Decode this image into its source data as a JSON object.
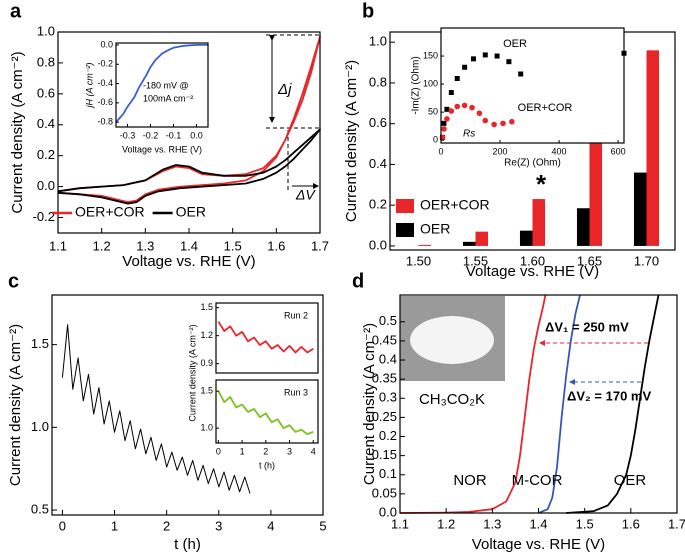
{
  "chart_data": [
    {
      "type": "line",
      "panel_label": "a",
      "xlabel": "Voltage vs. RHE (V)",
      "ylabel": "Current density (A cm⁻²)",
      "legend": "lower left",
      "xlim": [
        1.1,
        1.7
      ],
      "xticks": [
        1.1,
        1.2,
        1.3,
        1.4,
        1.5,
        1.6,
        1.7
      ],
      "ylim": [
        -0.3,
        1.0
      ],
      "yticks": [
        -0.2,
        {
          "value": 0,
          "label": "0.0"
        },
        0.2,
        0.4,
        0.6,
        0.8,
        {
          "value": 1,
          "label": "1.0"
        }
      ],
      "annotations": [
        "Δj",
        "ΔV"
      ],
      "x": [
        1.1,
        1.15,
        1.2,
        1.25,
        1.3,
        1.34,
        1.37,
        1.4,
        1.43,
        1.48,
        1.53,
        1.57,
        1.6,
        1.62,
        1.64,
        1.66,
        1.68,
        1.7,
        1.68,
        1.66,
        1.64,
        1.62,
        1.6,
        1.57,
        1.53,
        1.48,
        1.43,
        1.38,
        1.33,
        1.3,
        1.28,
        1.26,
        1.23,
        1.2,
        1.15,
        1.1
      ],
      "series": [
        {
          "name": "OER+COR",
          "color": "#e8262a",
          "values": [
            -0.03,
            -0.01,
            0.0,
            0.01,
            0.04,
            0.1,
            0.13,
            0.12,
            0.08,
            0.07,
            0.08,
            0.12,
            0.2,
            0.3,
            0.42,
            0.56,
            0.74,
            0.97,
            0.78,
            0.6,
            0.44,
            0.3,
            0.19,
            0.1,
            0.04,
            0.02,
            0.01,
            0.0,
            -0.02,
            -0.05,
            -0.09,
            -0.1,
            -0.08,
            -0.06,
            -0.05,
            -0.04
          ]
        },
        {
          "name": "OER",
          "color": "#000000",
          "values": [
            -0.03,
            -0.01,
            0.0,
            0.01,
            0.04,
            0.11,
            0.14,
            0.13,
            0.09,
            0.07,
            0.07,
            0.09,
            0.13,
            0.17,
            0.22,
            0.27,
            0.32,
            0.37,
            0.3,
            0.24,
            0.18,
            0.13,
            0.09,
            0.05,
            0.02,
            0.01,
            0.0,
            -0.01,
            -0.03,
            -0.06,
            -0.1,
            -0.11,
            -0.09,
            -0.07,
            -0.05,
            -0.04
          ]
        }
      ]
    },
    {
      "type": "line",
      "xlabel": "Voltage vs. RHE (V)",
      "ylabel": "jH (A cm⁻²)",
      "xlim": [
        -0.35,
        0.05
      ],
      "xticks": [
        -0.3,
        -0.2,
        -0.1,
        {
          "value": 0,
          "label": "0.0"
        }
      ],
      "ylim": [
        -0.85,
        0.02
      ],
      "yticks": [
        -0.8,
        -0.6,
        -0.4,
        -0.2,
        {
          "value": 0,
          "label": "0.0"
        }
      ],
      "annotations": [
        "-180 mV @",
        "100mA cm⁻²"
      ],
      "x": [
        -0.35,
        -0.32,
        -0.3,
        -0.27,
        -0.25,
        -0.22,
        -0.2,
        -0.18,
        -0.15,
        -0.12,
        -0.1,
        -0.07,
        -0.05,
        0.0,
        0.05
      ],
      "series": [
        {
          "color": "#3a5fcd",
          "values": [
            -0.8,
            -0.72,
            -0.64,
            -0.54,
            -0.44,
            -0.32,
            -0.23,
            -0.16,
            -0.09,
            -0.05,
            -0.03,
            -0.015,
            -0.008,
            0.0,
            0.0
          ]
        }
      ]
    },
    {
      "type": "bar",
      "panel_label": "b",
      "xlabel": "Voltage vs. RHE (V)",
      "ylabel": "Current density (A cm⁻²)",
      "legend": "center left",
      "categories": [
        "1.50",
        "1.55",
        "1.60",
        "1.65",
        "1.70"
      ],
      "ylim": [
        -0.02,
        1.05
      ],
      "yticks": [
        {
          "value": 0,
          "label": "0.0"
        },
        0.2,
        0.4,
        0.6,
        0.8,
        {
          "value": 1,
          "label": "1.0"
        }
      ],
      "annotations": [
        "*"
      ],
      "series": [
        {
          "name": "OER+COR",
          "color": "#e8262a",
          "values": [
            0.005,
            0.07,
            0.23,
            0.575,
            0.96
          ]
        },
        {
          "name": "OER",
          "color": "#000000",
          "values": [
            0.0,
            0.02,
            0.075,
            0.185,
            0.36
          ]
        }
      ]
    },
    {
      "type": "scatter",
      "xlabel": "Re(Z) (Ohm)",
      "ylabel": "-Im(Z) (Ohm)",
      "legend": "inline",
      "xlim": [
        0,
        620
      ],
      "xticks": [
        0,
        200,
        400,
        600
      ],
      "ylim": [
        -5,
        200
      ],
      "yticks": [
        0,
        50,
        100,
        150
      ],
      "annotations": [
        "Rs"
      ],
      "series": [
        {
          "name": "OER",
          "color": "#000000",
          "marker": "square",
          "x": [
            5,
            10,
            20,
            35,
            55,
            80,
            110,
            150,
            190,
            230,
            270,
            620
          ],
          "values": [
            5,
            30,
            55,
            85,
            110,
            130,
            145,
            152,
            150,
            140,
            118,
            155
          ]
        },
        {
          "name": "OER+COR",
          "color": "#e8262a",
          "marker": "circle",
          "x": [
            5,
            10,
            20,
            35,
            55,
            80,
            105,
            130,
            150,
            180,
            210,
            240
          ],
          "values": [
            5,
            20,
            38,
            52,
            60,
            62,
            58,
            48,
            35,
            28,
            30,
            33
          ]
        }
      ]
    },
    {
      "type": "line",
      "panel_label": "c",
      "xlabel": "t (h)",
      "ylabel": "Current density (A cm⁻²)",
      "xlim": [
        -0.2,
        5
      ],
      "xticks": [
        0,
        1,
        2,
        3,
        4,
        5
      ],
      "ylim": [
        0.47,
        1.8
      ],
      "yticks": [
        0.5,
        {
          "value": 1,
          "label": "1.0"
        },
        1.5
      ],
      "x": [
        0,
        0.1,
        0.2,
        0.3,
        0.4,
        0.5,
        0.6,
        0.7,
        0.8,
        0.9,
        1.0,
        1.1,
        1.2,
        1.3,
        1.4,
        1.5,
        1.6,
        1.7,
        1.8,
        1.9,
        2.0,
        2.1,
        2.2,
        2.3,
        2.4,
        2.5,
        2.6,
        2.7,
        2.8,
        2.9,
        3.0,
        3.1,
        3.2,
        3.3,
        3.4,
        3.5,
        3.6
      ],
      "series": [
        {
          "color": "#000000",
          "values": [
            1.3,
            1.62,
            1.23,
            1.42,
            1.16,
            1.32,
            1.08,
            1.24,
            1.02,
            1.16,
            0.97,
            1.1,
            0.92,
            1.04,
            0.87,
            0.99,
            0.84,
            0.94,
            0.8,
            0.9,
            0.76,
            0.85,
            0.74,
            0.82,
            0.71,
            0.8,
            0.68,
            0.77,
            0.66,
            0.75,
            0.64,
            0.73,
            0.62,
            0.71,
            0.61,
            0.7,
            0.6
          ]
        }
      ]
    },
    {
      "type": "line",
      "ylabel": "Current density (A cm⁻²)",
      "legend": "inline",
      "xlim": [
        -0.1,
        4.2
      ],
      "ylim": [
        0.8,
        1.55
      ],
      "yticks": [
        0.9,
        1.2,
        1.5
      ],
      "x": [
        0,
        0.25,
        0.5,
        0.75,
        1,
        1.25,
        1.5,
        1.75,
        2,
        2.25,
        2.5,
        2.75,
        3,
        3.25,
        3.5,
        3.75,
        4
      ],
      "series": [
        {
          "name": "Run 2",
          "color": "#e8262a",
          "values": [
            1.35,
            1.25,
            1.3,
            1.2,
            1.24,
            1.14,
            1.18,
            1.1,
            1.14,
            1.06,
            1.1,
            1.03,
            1.09,
            1.02,
            1.08,
            1.02,
            1.06
          ]
        }
      ]
    },
    {
      "type": "line",
      "xlabel": "t (h)",
      "legend": "inline",
      "xlim": [
        -0.1,
        4.2
      ],
      "xticks": [
        0,
        1,
        2,
        3,
        4
      ],
      "ylim": [
        0.8,
        1.65
      ],
      "yticks": [
        {
          "value": 1,
          "label": "1.0"
        },
        1.5
      ],
      "x": [
        0,
        0.25,
        0.5,
        0.75,
        1,
        1.25,
        1.5,
        1.75,
        2,
        2.25,
        2.5,
        2.75,
        3,
        3.25,
        3.5,
        3.75,
        4
      ],
      "series": [
        {
          "name": "Run 3",
          "color": "#7cc21a",
          "values": [
            1.5,
            1.35,
            1.42,
            1.28,
            1.32,
            1.22,
            1.26,
            1.15,
            1.2,
            1.08,
            1.12,
            1.0,
            1.04,
            0.95,
            0.98,
            0.92,
            0.95
          ]
        }
      ]
    },
    {
      "type": "line",
      "panel_label": "d",
      "xlabel": "Voltage vs. RHE (V)",
      "ylabel": "Current density (A cm⁻²)",
      "legend": "inline",
      "xlim": [
        1.1,
        1.7
      ],
      "xticks": [
        1.1,
        1.2,
        1.3,
        1.4,
        1.5,
        1.6,
        1.7
      ],
      "ylim": [
        0,
        0.57
      ],
      "yticks": [
        {
          "value": 0,
          "label": "0.0"
        },
        0.05,
        0.1,
        0.15,
        0.2,
        0.25,
        0.3,
        0.35,
        0.4,
        0.45,
        0.5
      ],
      "annotations": [
        "ΔV₁ = 250 mV",
        "ΔV₂ = 170 mV",
        "CH₃CO₂K"
      ],
      "series": [
        {
          "name": "NOR",
          "color": "#e8262a",
          "x": [
            1.1,
            1.2,
            1.25,
            1.3,
            1.33,
            1.35,
            1.36,
            1.37,
            1.38,
            1.39,
            1.4,
            1.41,
            1.415
          ],
          "values": [
            0.0,
            0.001,
            0.003,
            0.01,
            0.03,
            0.08,
            0.15,
            0.25,
            0.35,
            0.43,
            0.49,
            0.54,
            0.57
          ]
        },
        {
          "name": "M-COR",
          "color": "#3657b8",
          "x": [
            1.4,
            1.42,
            1.43,
            1.44,
            1.45,
            1.46,
            1.47,
            1.48,
            1.49
          ],
          "values": [
            0.0,
            0.01,
            0.04,
            0.12,
            0.25,
            0.36,
            0.45,
            0.52,
            0.57
          ]
        },
        {
          "name": "OER",
          "color": "#000000",
          "x": [
            1.46,
            1.52,
            1.55,
            1.57,
            1.59,
            1.6,
            1.61,
            1.62,
            1.63,
            1.64,
            1.65,
            1.66
          ],
          "values": [
            0.0,
            0.005,
            0.02,
            0.05,
            0.1,
            0.15,
            0.22,
            0.3,
            0.38,
            0.45,
            0.51,
            0.57
          ]
        }
      ]
    }
  ]
}
